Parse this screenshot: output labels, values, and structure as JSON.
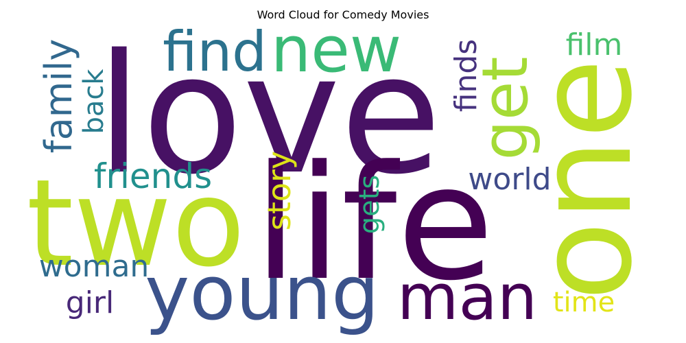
{
  "title": "Word Cloud for Comedy Movies",
  "words": [
    {
      "text": "love",
      "color": "#471164"
    },
    {
      "text": "two",
      "color": "#bddf26"
    },
    {
      "text": "life",
      "color": "#440154"
    },
    {
      "text": "one",
      "color": "#bddf26"
    },
    {
      "text": "young",
      "color": "#3b528b"
    },
    {
      "text": "man",
      "color": "#440154"
    },
    {
      "text": "new",
      "color": "#3aba76"
    },
    {
      "text": "find",
      "color": "#2c728e"
    },
    {
      "text": "get",
      "color": "#a5db36"
    },
    {
      "text": "family",
      "color": "#31688e"
    },
    {
      "text": "friends",
      "color": "#21908d"
    },
    {
      "text": "film",
      "color": "#4ac16d"
    },
    {
      "text": "finds",
      "color": "#46327e"
    },
    {
      "text": "back",
      "color": "#287c8e"
    },
    {
      "text": "story",
      "color": "#dde318"
    },
    {
      "text": "world",
      "color": "#3e4a89"
    },
    {
      "text": "gets",
      "color": "#29af7f"
    },
    {
      "text": "woman",
      "color": "#2f6c8e"
    },
    {
      "text": "girl",
      "color": "#482878"
    },
    {
      "text": "time",
      "color": "#e2e418"
    }
  ]
}
